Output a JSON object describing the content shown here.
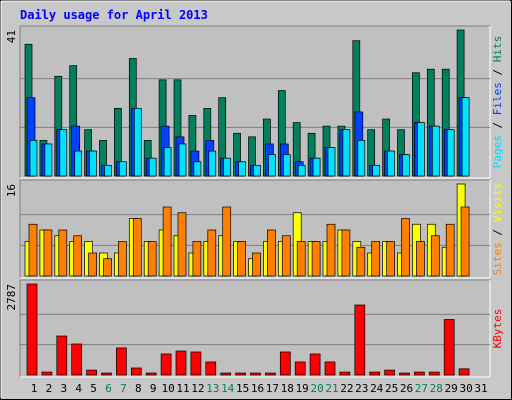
{
  "chart_data": [
    {
      "type": "bar",
      "title": "Daily usage for April 2013",
      "separator": " / ",
      "ylim": [
        0,
        41
      ],
      "yticks": [
        41
      ],
      "series": [
        {
          "name": "Hits",
          "color": "#00805c",
          "values": [
            37,
            10,
            28,
            31,
            13,
            10,
            19,
            33,
            10,
            27,
            27,
            17,
            19,
            22,
            12,
            11,
            16,
            24,
            15,
            12,
            14,
            14,
            38,
            13,
            16,
            13,
            29,
            30,
            30,
            41,
            0
          ]
        },
        {
          "name": "Files",
          "color": "#0040ff",
          "values": [
            22,
            9,
            13,
            14,
            7,
            3,
            4,
            19,
            5,
            14,
            11,
            7,
            10,
            5,
            4,
            3,
            9,
            9,
            4,
            5,
            8,
            13,
            18,
            3,
            7,
            6,
            15,
            14,
            13,
            22,
            0
          ]
        },
        {
          "name": "Pages",
          "color": "#00e0ff",
          "values": [
            10,
            9,
            13,
            7,
            7,
            3,
            4,
            19,
            5,
            8,
            9,
            4,
            7,
            5,
            4,
            3,
            6,
            6,
            3,
            5,
            8,
            13,
            10,
            3,
            7,
            6,
            15,
            14,
            13,
            22,
            0
          ]
        }
      ]
    },
    {
      "type": "bar",
      "separator": " / ",
      "ylim": [
        0,
        16
      ],
      "yticks": [
        16
      ],
      "series": [
        {
          "name": "Visits",
          "color": "#ffff00",
          "values": [
            6,
            8,
            7,
            6,
            6,
            4,
            4,
            10,
            6,
            8,
            7,
            4,
            6,
            7,
            6,
            3,
            6,
            6,
            11,
            6,
            6,
            8,
            6,
            4,
            6,
            4,
            9,
            9,
            5,
            16,
            0
          ]
        },
        {
          "name": "Sites",
          "color": "#ff8000",
          "values": [
            9,
            8,
            8,
            7,
            4,
            3,
            6,
            10,
            6,
            12,
            11,
            6,
            8,
            12,
            6,
            4,
            8,
            7,
            6,
            6,
            9,
            8,
            5,
            6,
            6,
            10,
            6,
            7,
            9,
            12,
            0
          ]
        }
      ]
    },
    {
      "type": "bar",
      "ylim": [
        0,
        2787
      ],
      "yticks": [
        2787
      ],
      "categories": [
        "1",
        "2",
        "3",
        "4",
        "5",
        "6",
        "7",
        "8",
        "9",
        "10",
        "11",
        "12",
        "13",
        "14",
        "15",
        "16",
        "17",
        "18",
        "19",
        "20",
        "21",
        "22",
        "23",
        "24",
        "25",
        "26",
        "27",
        "28",
        "29",
        "30",
        "31"
      ],
      "category_colors": [
        "#000",
        "#000",
        "#000",
        "#000",
        "#000",
        "#00805c",
        "#00805c",
        "#000",
        "#000",
        "#000",
        "#000",
        "#000",
        "#00805c",
        "#00805c",
        "#000",
        "#000",
        "#000",
        "#000",
        "#000",
        "#00805c",
        "#00805c",
        "#000",
        "#000",
        "#000",
        "#000",
        "#000",
        "#00805c",
        "#00805c",
        "#000",
        "#000",
        "#000"
      ],
      "series": [
        {
          "name": "KBytes",
          "color": "#ff0000",
          "values": [
            2787,
            90,
            1194,
            950,
            150,
            60,
            830,
            215,
            60,
            645,
            735,
            705,
            400,
            60,
            60,
            60,
            60,
            705,
            400,
            645,
            400,
            90,
            2144,
            90,
            150,
            60,
            90,
            90,
            1700,
            190,
            0
          ]
        }
      ]
    }
  ]
}
